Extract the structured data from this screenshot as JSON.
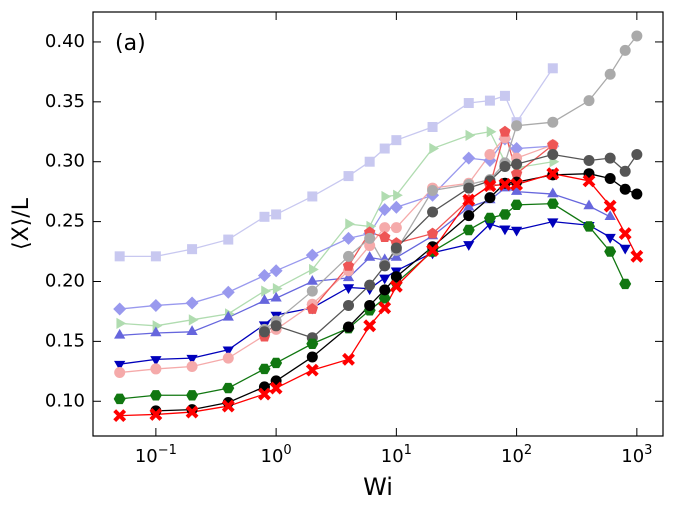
{
  "chart_data": {
    "type": "line",
    "annotation": "(a)",
    "x_label": "Wi",
    "y_label": "⟨X⟩/L",
    "x_scale": "log",
    "xlim": [
      0.03,
      1650
    ],
    "ylim": [
      0.071,
      0.425
    ],
    "xticks": [
      {
        "value": 0.1,
        "label": "10−1"
      },
      {
        "value": 1,
        "label": "100"
      },
      {
        "value": 10,
        "label": "101"
      },
      {
        "value": 100,
        "label": "102"
      },
      {
        "value": 1000,
        "label": "103"
      }
    ],
    "yticks": [
      {
        "value": 0.1,
        "label": "0.10"
      },
      {
        "value": 0.15,
        "label": "0.15"
      },
      {
        "value": 0.2,
        "label": "0.20"
      },
      {
        "value": 0.25,
        "label": "0.25"
      },
      {
        "value": 0.3,
        "label": "0.30"
      },
      {
        "value": 0.35,
        "label": "0.35"
      },
      {
        "value": 0.4,
        "label": "0.40"
      }
    ],
    "x": [
      0.05,
      0.1,
      0.2,
      0.4,
      0.8,
      1,
      2,
      4,
      6,
      8,
      10,
      20,
      40,
      60,
      80,
      100,
      200,
      400,
      600,
      800,
      1000
    ],
    "series": [
      {
        "color": "#c8c8f0",
        "marker": "square",
        "values": [
          0.221,
          0.221,
          0.227,
          0.235,
          0.254,
          0.256,
          0.271,
          0.288,
          0.3,
          0.311,
          0.318,
          0.329,
          0.349,
          0.351,
          0.355,
          0.333,
          0.378,
          null,
          null,
          null,
          null
        ]
      },
      {
        "color": "#b0dcb0",
        "marker": "triangle-right",
        "values": [
          0.165,
          0.163,
          0.168,
          0.173,
          0.192,
          0.194,
          0.21,
          0.248,
          0.246,
          0.271,
          0.272,
          0.311,
          0.322,
          0.325,
          0.3,
          0.295,
          0.3,
          null,
          null,
          null,
          null
        ]
      },
      {
        "color": "#9999ee",
        "marker": "diamond",
        "values": [
          0.177,
          0.18,
          0.182,
          0.191,
          0.205,
          0.209,
          0.222,
          0.236,
          0.24,
          0.26,
          0.262,
          0.272,
          0.303,
          0.301,
          0.319,
          0.311,
          0.313,
          null,
          null,
          null,
          null
        ]
      },
      {
        "color": "#6666dd",
        "marker": "triangle-up",
        "values": [
          0.155,
          0.157,
          0.158,
          0.17,
          0.184,
          0.186,
          0.2,
          0.203,
          0.22,
          0.218,
          0.22,
          0.238,
          0.262,
          0.268,
          0.278,
          0.275,
          0.273,
          0.263,
          0.254,
          null,
          null
        ]
      },
      {
        "color": "#0000bb",
        "marker": "triangle-down",
        "values": [
          0.131,
          0.135,
          0.136,
          0.143,
          0.164,
          0.172,
          0.178,
          0.195,
          0.194,
          0.203,
          0.209,
          0.224,
          0.231,
          0.248,
          0.244,
          0.243,
          0.25,
          0.247,
          0.237,
          0.228,
          null
        ]
      },
      {
        "color": "#f5aaaa",
        "marker": "circle",
        "values": [
          0.124,
          0.127,
          0.129,
          0.136,
          0.155,
          0.16,
          0.181,
          0.209,
          0.23,
          0.245,
          0.245,
          0.278,
          0.282,
          0.306,
          0.32,
          0.303,
          0.314,
          null,
          null,
          null,
          null
        ]
      },
      {
        "color": "#ee5555",
        "marker": "pentagon",
        "values": [
          null,
          null,
          null,
          null,
          0.154,
          null,
          0.177,
          0.213,
          0.241,
          0.237,
          0.232,
          0.24,
          0.268,
          0.28,
          0.325,
          0.29,
          0.314,
          null,
          null,
          null,
          null
        ]
      },
      {
        "color": "#aaaaaa",
        "marker": "circle",
        "values": [
          null,
          null,
          null,
          null,
          0.16,
          0.167,
          0.192,
          0.221,
          0.236,
          0.214,
          0.226,
          0.276,
          0.281,
          0.285,
          0.299,
          0.33,
          0.333,
          0.351,
          0.373,
          0.393,
          0.405
        ]
      },
      {
        "color": "#555555",
        "marker": "circle",
        "values": [
          null,
          null,
          null,
          null,
          0.158,
          0.163,
          0.153,
          0.18,
          0.197,
          0.213,
          0.228,
          0.258,
          0.278,
          0.284,
          0.296,
          0.298,
          0.306,
          0.301,
          0.303,
          0.292,
          0.306
        ]
      },
      {
        "color": "#117711",
        "marker": "hexagon",
        "values": [
          0.102,
          0.105,
          0.105,
          0.111,
          0.127,
          0.132,
          0.148,
          0.161,
          0.176,
          0.186,
          0.199,
          0.225,
          0.243,
          0.253,
          0.256,
          0.264,
          0.265,
          0.246,
          0.225,
          0.198,
          null
        ]
      },
      {
        "color": "#000000",
        "marker": "circle",
        "values": [
          null,
          0.092,
          0.093,
          0.099,
          0.112,
          0.117,
          0.137,
          0.162,
          0.18,
          0.193,
          0.204,
          0.229,
          0.255,
          0.27,
          0.282,
          0.283,
          0.289,
          0.29,
          0.286,
          0.277,
          0.273
        ]
      },
      {
        "color": "#ff0000",
        "marker": "x",
        "values": [
          0.088,
          0.089,
          0.091,
          0.096,
          0.106,
          0.111,
          0.126,
          0.135,
          0.163,
          0.178,
          0.196,
          0.226,
          0.268,
          0.28,
          0.281,
          0.281,
          0.29,
          0.284,
          0.263,
          0.24,
          0.221
        ]
      }
    ]
  }
}
